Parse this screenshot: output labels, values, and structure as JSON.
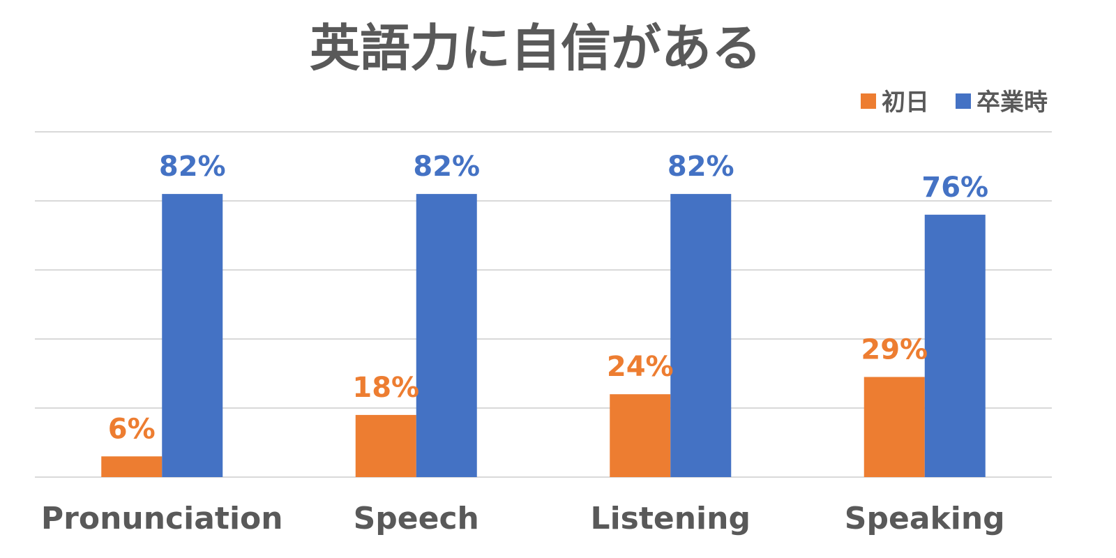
{
  "chart_data": {
    "type": "bar",
    "title": "英語力に自信がある",
    "categories": [
      "Pronunciation",
      "Speech",
      "Listening",
      "Speaking"
    ],
    "series": [
      {
        "name": "初日",
        "values": [
          6,
          18,
          24,
          29
        ],
        "color": "#ED7D31",
        "labels": [
          "6%",
          "18%",
          "24%",
          "29%"
        ]
      },
      {
        "name": "卒業時",
        "values": [
          82,
          82,
          82,
          76
        ],
        "color": "#4472C4",
        "labels": [
          "82%",
          "82%",
          "82%",
          "76%"
        ]
      }
    ],
    "xlabel": "",
    "ylabel": "",
    "ylim": [
      0,
      100
    ],
    "grid": true,
    "legend_position": "top-right"
  }
}
